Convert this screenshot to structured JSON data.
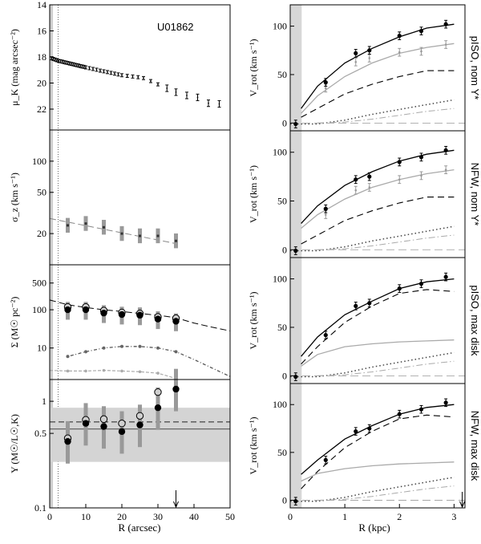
{
  "figure": {
    "galaxy_label": "U01862",
    "left_xlabel": "R (arcsec)",
    "right_xlabel": "R (kpc)",
    "left_xticks": [
      "0",
      "10",
      "20",
      "30",
      "40",
      "50"
    ],
    "right_xticks": [
      "0",
      "1",
      "2",
      "3"
    ]
  },
  "chart_data": [
    {
      "id": "muK",
      "type": "scatter",
      "ylabel": "μ_K (mag arcsec⁻²)",
      "xlim": [
        0,
        50
      ],
      "ylim": [
        23.6,
        14
      ],
      "y_inverted": true,
      "yticks": [
        "14",
        "16",
        "18",
        "20",
        "22"
      ],
      "series": [
        {
          "name": "surface brightness",
          "x": [
            0.5,
            1,
            1.5,
            2,
            2.5,
            3,
            3.5,
            4,
            4.5,
            5,
            5.5,
            6,
            6.5,
            7,
            7.5,
            8,
            8.5,
            9,
            9.5,
            10,
            11,
            12,
            13,
            14,
            15,
            16,
            17,
            18,
            19,
            20,
            21.5,
            23,
            24.5,
            26,
            28,
            30,
            32.5,
            35,
            38,
            41,
            44,
            47
          ],
          "y": [
            18.1,
            18.15,
            18.2,
            18.25,
            18.3,
            18.33,
            18.36,
            18.4,
            18.43,
            18.46,
            18.5,
            18.53,
            18.56,
            18.6,
            18.63,
            18.66,
            18.7,
            18.73,
            18.76,
            18.8,
            18.86,
            18.92,
            18.98,
            19.05,
            19.1,
            19.16,
            19.22,
            19.28,
            19.34,
            19.4,
            19.45,
            19.5,
            19.55,
            19.62,
            19.85,
            20.1,
            20.4,
            20.7,
            20.95,
            21.1,
            21.55,
            21.6
          ]
        }
      ]
    },
    {
      "id": "sigma",
      "type": "scatter",
      "ylabel": "σ_z (km s⁻¹)",
      "xlim": [
        0,
        50
      ],
      "ylim": [
        10,
        200
      ],
      "yscale": "log",
      "yticks": [
        "20",
        "50",
        "100"
      ],
      "series": [
        {
          "name": "σz measured",
          "x": [
            5,
            10,
            15,
            20,
            25,
            30,
            35
          ],
          "y": [
            24,
            25,
            23,
            20,
            19,
            19,
            17
          ]
        },
        {
          "name": "fit",
          "x": [
            0,
            35
          ],
          "y": [
            28,
            16
          ]
        }
      ]
    },
    {
      "id": "Sigma",
      "type": "scatter",
      "ylabel": "Σ (M☉ pc⁻²)",
      "xlim": [
        0,
        50
      ],
      "ylim": [
        1.5,
        1500
      ],
      "yscale": "log",
      "yticks": [
        "1",
        "10",
        "100",
        "500"
      ],
      "series": [
        {
          "name": "Σ dyn open",
          "x": [
            5,
            10,
            15,
            20,
            25,
            30,
            35
          ],
          "y": [
            118,
            118,
            95,
            85,
            80,
            65,
            60
          ]
        },
        {
          "name": "Σ dyn filled",
          "x": [
            5,
            10,
            15,
            20,
            25,
            30,
            35
          ],
          "y": [
            100,
            100,
            82,
            75,
            72,
            57,
            50
          ]
        },
        {
          "name": "dashed",
          "x": [
            0,
            5,
            10,
            15,
            20,
            25,
            30,
            35,
            40,
            45,
            50
          ],
          "y": [
            180,
            135,
            115,
            100,
            90,
            80,
            72,
            62,
            45,
            35,
            28
          ]
        },
        {
          "name": "stars",
          "x": [
            5,
            10,
            15,
            20,
            25,
            30,
            35,
            40,
            45,
            50
          ],
          "y": [
            6,
            8,
            10,
            11,
            11,
            10,
            8,
            5,
            3,
            1.8
          ]
        },
        {
          "name": "gas",
          "x": [
            0,
            5,
            10,
            15,
            20,
            25,
            30,
            35
          ],
          "y": [
            2.6,
            2.5,
            2.5,
            2.6,
            2.5,
            2.4,
            2.2,
            1.6
          ]
        }
      ]
    },
    {
      "id": "Upsilon",
      "type": "scatter",
      "ylabel": "Υ (M☉/L☉,K)",
      "xlim": [
        0,
        50
      ],
      "ylim": [
        0.1,
        1.6
      ],
      "yscale": "log",
      "yticks": [
        "0.1",
        "0.5",
        "1"
      ],
      "band": [
        0.27,
        0.87
      ],
      "hlines": [
        0.55,
        0.64
      ],
      "arrow_x": 35,
      "series": [
        {
          "name": "open",
          "x": [
            5,
            10,
            15,
            20,
            25,
            30
          ],
          "y": [
            0.45,
            0.67,
            0.68,
            0.62,
            0.73,
            1.22
          ]
        },
        {
          "name": "filled",
          "x": [
            5,
            10,
            15,
            20,
            25,
            30,
            35
          ],
          "y": [
            0.42,
            0.62,
            0.58,
            0.52,
            0.6,
            0.87,
            1.3
          ]
        }
      ]
    },
    {
      "id": "rc1",
      "type": "line",
      "label": "pISO, nom Υ*",
      "ylabel": "V_rot (km s⁻¹)",
      "xlim": [
        0,
        3.2
      ],
      "ylim": [
        -8,
        122
      ],
      "yticks": [
        "0",
        "50",
        "100"
      ],
      "data_points": {
        "x": [
          0.1,
          0.65,
          1.2,
          1.45,
          2.0,
          2.4,
          2.85
        ],
        "y": [
          -1,
          42,
          72,
          75,
          90,
          95,
          102
        ]
      },
      "grey_points": {
        "x": [
          0.65,
          1.2,
          1.45,
          2.0,
          2.4,
          2.85
        ],
        "y": [
          36,
          63,
          67,
          73,
          74,
          81
        ]
      },
      "curves": [
        {
          "name": "total",
          "x": [
            0.2,
            0.5,
            1,
            1.5,
            2,
            2.5,
            3
          ],
          "y": [
            15,
            38,
            62,
            77,
            89,
            98,
            102
          ]
        },
        {
          "name": "halo",
          "x": [
            0.2,
            0.5,
            1,
            1.5,
            2,
            2.5,
            3
          ],
          "y": [
            10,
            28,
            48,
            62,
            72,
            78,
            82
          ]
        },
        {
          "name": "stars",
          "x": [
            0.2,
            0.5,
            1,
            1.5,
            2,
            2.5,
            3
          ],
          "y": [
            6,
            15,
            30,
            40,
            48,
            54,
            54
          ]
        },
        {
          "name": "gas dotted",
          "x": [
            0,
            0.5,
            1,
            1.5,
            2,
            2.5,
            3
          ],
          "y": [
            -1,
            -1,
            3,
            9,
            14,
            19,
            24
          ]
        },
        {
          "name": "gas dashdot",
          "x": [
            0.5,
            1,
            1.5,
            2,
            2.5,
            3
          ],
          "y": [
            0,
            1,
            4,
            8,
            12,
            15
          ]
        }
      ]
    },
    {
      "id": "rc2",
      "type": "line",
      "label": "NFW, nom Υ*",
      "ylabel": "V_rot (km s⁻¹)",
      "xlim": [
        0,
        3.2
      ],
      "ylim": [
        -8,
        122
      ],
      "yticks": [
        "0",
        "50",
        "100"
      ],
      "data_points": {
        "x": [
          0.1,
          0.65,
          1.2,
          1.45,
          2.0,
          2.4,
          2.85
        ],
        "y": [
          -1,
          42,
          72,
          75,
          90,
          95,
          102
        ]
      },
      "grey_points": {
        "x": [
          0.65,
          1.2,
          1.45,
          2.0,
          2.4,
          2.85
        ],
        "y": [
          36,
          61,
          64,
          72,
          76,
          82
        ]
      },
      "curves": [
        {
          "name": "total",
          "x": [
            0.2,
            0.5,
            1,
            1.5,
            2,
            2.5,
            3
          ],
          "y": [
            27,
            45,
            66,
            80,
            91,
            98,
            102
          ]
        },
        {
          "name": "halo",
          "x": [
            0.2,
            0.5,
            1,
            1.5,
            2,
            2.5,
            3
          ],
          "y": [
            22,
            36,
            52,
            64,
            72,
            78,
            82
          ]
        },
        {
          "name": "stars",
          "x": [
            0.2,
            0.5,
            1,
            1.5,
            2,
            2.5,
            3
          ],
          "y": [
            6,
            15,
            30,
            40,
            48,
            54,
            54
          ]
        },
        {
          "name": "gas dotted",
          "x": [
            0,
            0.5,
            1,
            1.5,
            2,
            2.5,
            3
          ],
          "y": [
            -1,
            -1,
            3,
            9,
            14,
            19,
            24
          ]
        },
        {
          "name": "gas dashdot",
          "x": [
            0.5,
            1,
            1.5,
            2,
            2.5,
            3
          ],
          "y": [
            0,
            1,
            4,
            8,
            12,
            15
          ]
        }
      ]
    },
    {
      "id": "rc3",
      "type": "line",
      "label": "pISO, max disk",
      "ylabel": "V_rot (km s⁻¹)",
      "xlim": [
        0,
        3.2
      ],
      "ylim": [
        -8,
        122
      ],
      "yticks": [
        "0",
        "50",
        "100"
      ],
      "data_points": {
        "x": [
          0.1,
          0.65,
          1.2,
          1.45,
          2.0,
          2.4,
          2.85
        ],
        "y": [
          -1,
          42,
          72,
          75,
          90,
          95,
          102
        ]
      },
      "curves": [
        {
          "name": "total",
          "x": [
            0.2,
            0.5,
            1,
            1.5,
            2,
            2.5,
            3
          ],
          "y": [
            20,
            40,
            63,
            77,
            90,
            97,
            100
          ]
        },
        {
          "name": "stars",
          "x": [
            0.2,
            0.5,
            1,
            1.5,
            2,
            2.5,
            3
          ],
          "y": [
            12,
            30,
            55,
            72,
            85,
            89,
            87
          ]
        },
        {
          "name": "halo",
          "x": [
            0.2,
            0.5,
            1,
            1.5,
            2,
            2.5,
            3
          ],
          "y": [
            10,
            22,
            30,
            33,
            35,
            36,
            37
          ]
        },
        {
          "name": "gas dotted",
          "x": [
            0,
            0.5,
            1,
            1.5,
            2,
            2.5,
            3
          ],
          "y": [
            -1,
            -1,
            3,
            9,
            14,
            19,
            24
          ]
        },
        {
          "name": "gas dashdot",
          "x": [
            0.5,
            1,
            1.5,
            2,
            2.5,
            3
          ],
          "y": [
            0,
            1,
            4,
            8,
            12,
            15
          ]
        }
      ]
    },
    {
      "id": "rc4",
      "type": "line",
      "label": "NFW, max disk",
      "ylabel": "V_rot (km s⁻¹)",
      "xlim": [
        0,
        3.2
      ],
      "ylim": [
        -8,
        122
      ],
      "yticks": [
        "0",
        "50",
        "100"
      ],
      "arrow_x": 3.15,
      "data_points": {
        "x": [
          0.1,
          0.65,
          1.2,
          1.45,
          2.0,
          2.4,
          2.85
        ],
        "y": [
          -1,
          42,
          72,
          75,
          90,
          95,
          102
        ]
      },
      "curves": [
        {
          "name": "total",
          "x": [
            0.2,
            0.5,
            1,
            1.5,
            2,
            2.5,
            3
          ],
          "y": [
            27,
            42,
            64,
            78,
            90,
            97,
            100
          ]
        },
        {
          "name": "stars",
          "x": [
            0.2,
            0.5,
            1,
            1.5,
            2,
            2.5,
            3
          ],
          "y": [
            12,
            30,
            55,
            72,
            85,
            89,
            87
          ]
        },
        {
          "name": "halo",
          "x": [
            0.2,
            0.5,
            1,
            1.5,
            2,
            2.5,
            3
          ],
          "y": [
            20,
            28,
            33,
            36,
            38,
            39,
            40
          ]
        },
        {
          "name": "gas dotted",
          "x": [
            0,
            0.5,
            1,
            1.5,
            2,
            2.5,
            3
          ],
          "y": [
            -1,
            -1,
            3,
            9,
            14,
            19,
            24
          ]
        },
        {
          "name": "gas dashdot",
          "x": [
            0.5,
            1,
            1.5,
            2,
            2.5,
            3
          ],
          "y": [
            0,
            1,
            4,
            8,
            12,
            15
          ]
        }
      ]
    }
  ]
}
